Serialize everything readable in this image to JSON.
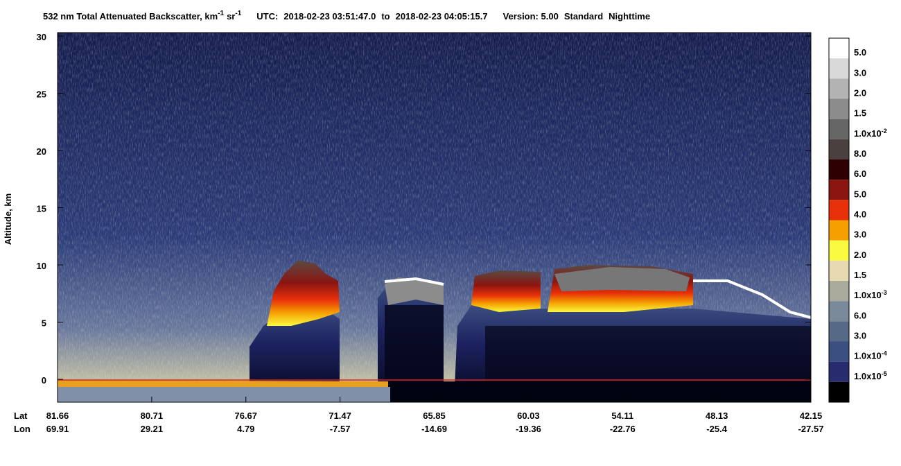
{
  "chart_data": {
    "type": "profile",
    "title": {
      "text": "532 nm Total Attenuated Backscatter, km",
      "exp1": "-1",
      "unit2": "sr",
      "exp2": "-1",
      "utc": "UTC:",
      "start": "2018-02-23 03:51:47.0",
      "to": "to",
      "end": "2018-02-23 04:05:15.7",
      "version": "Version: 5.00",
      "product": "Standard",
      "mode": "Nighttime"
    },
    "ylabel": "Altitude, km",
    "ylim": [
      -2,
      30
    ],
    "yticks": [
      0,
      5,
      10,
      15,
      20,
      25,
      30
    ],
    "lat_label": "Lat",
    "lon_label": "Lon",
    "lat": [
      81.66,
      80.71,
      76.67,
      71.47,
      65.85,
      60.03,
      54.11,
      48.13,
      42.15
    ],
    "lon": [
      69.91,
      29.21,
      4.79,
      -7.57,
      -14.69,
      -19.36,
      -22.76,
      -25.4,
      -27.57
    ],
    "colorbar": {
      "colors": [
        "#ffffff",
        "#d9d9d9",
        "#b3b3b3",
        "#8c8c8c",
        "#666666",
        "#4b4040",
        "#2e0000",
        "#8b1510",
        "#e8300a",
        "#f5a000",
        "#fafa40",
        "#e8dab0",
        "#a9a99c",
        "#7a8a9a",
        "#566a88",
        "#3a4e80",
        "#262c6e",
        "#000000"
      ],
      "labels": [
        {
          "text": "5.0"
        },
        {
          "text": "3.0"
        },
        {
          "text": "2.0"
        },
        {
          "text": "1.5"
        },
        {
          "text": "1.0x10",
          "sup": "-2"
        },
        {
          "text": "8.0"
        },
        {
          "text": "6.0"
        },
        {
          "text": "5.0"
        },
        {
          "text": "4.0"
        },
        {
          "text": "3.0"
        },
        {
          "text": "2.0"
        },
        {
          "text": "1.5"
        },
        {
          "text": "1.0x10",
          "sup": "-3"
        },
        {
          "text": "6.0"
        },
        {
          "text": "3.0"
        },
        {
          "text": "1.0x10",
          "sup": "-4"
        },
        {
          "text": "1.0x10",
          "sup": "-5"
        }
      ]
    }
  }
}
